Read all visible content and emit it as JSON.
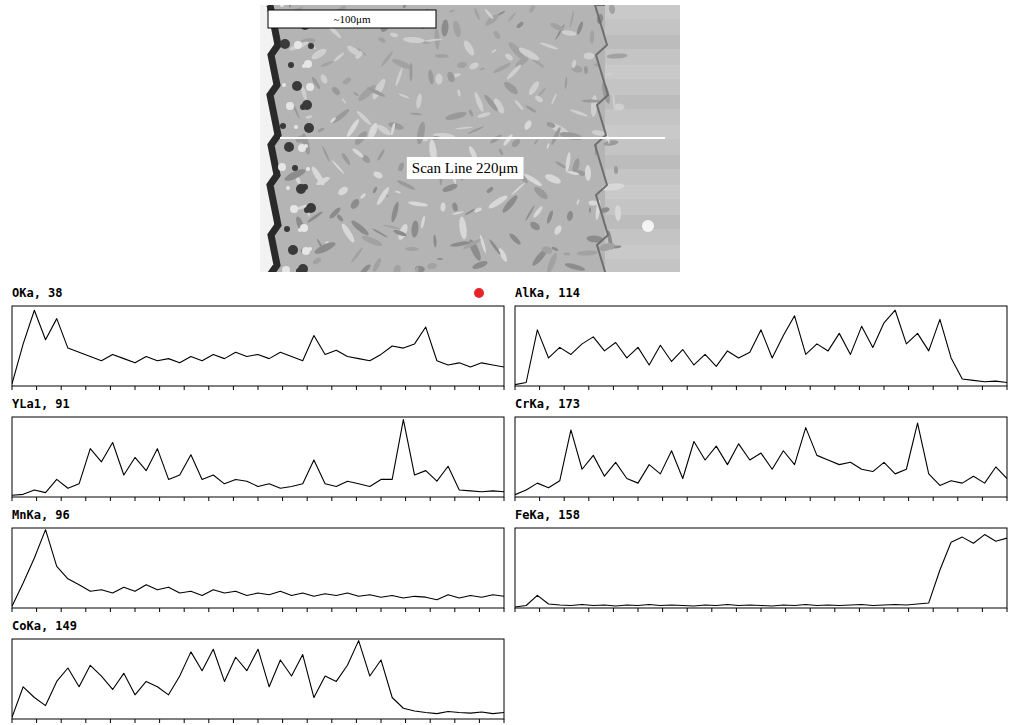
{
  "image": {
    "scale_bar": "~100μm",
    "scan_line_label": "Scan Line 220μm"
  },
  "chart_data": [
    {
      "type": "line",
      "title": "OKa, 38",
      "color": "#000000",
      "grid": false,
      "tick_labels": false,
      "xlim": [
        0,
        220
      ],
      "ylim": [
        0,
        38
      ],
      "xticks": [
        0,
        11,
        22,
        33,
        44,
        55,
        66,
        77,
        88,
        99,
        110,
        121,
        132,
        143,
        154,
        165,
        176,
        187,
        198,
        209,
        220
      ],
      "x": [
        0,
        5,
        10,
        15,
        20,
        25,
        30,
        35,
        40,
        45,
        50,
        55,
        60,
        65,
        70,
        75,
        80,
        85,
        90,
        95,
        100,
        105,
        110,
        115,
        120,
        125,
        130,
        135,
        140,
        145,
        150,
        155,
        160,
        165,
        170,
        175,
        180,
        185,
        190,
        195,
        200,
        205,
        210,
        215,
        220
      ],
      "values": [
        1,
        20,
        36,
        22,
        32,
        18,
        16,
        14,
        12,
        15,
        13,
        11,
        14,
        12,
        13,
        11,
        14,
        12,
        15,
        13,
        16,
        14,
        15,
        13,
        16,
        14,
        12,
        24,
        15,
        17,
        14,
        13,
        12,
        15,
        19,
        18,
        20,
        28,
        12,
        10,
        11,
        9,
        11,
        10,
        9
      ]
    },
    {
      "type": "line",
      "title": "AlKa, 114",
      "color": "#000000",
      "grid": false,
      "tick_labels": false,
      "xlim": [
        0,
        220
      ],
      "ylim": [
        0,
        114
      ],
      "xticks": [
        0,
        11,
        22,
        33,
        44,
        55,
        66,
        77,
        88,
        99,
        110,
        121,
        132,
        143,
        154,
        165,
        176,
        187,
        198,
        209,
        220
      ],
      "x": [
        0,
        5,
        10,
        15,
        20,
        25,
        30,
        35,
        40,
        45,
        50,
        55,
        60,
        65,
        70,
        75,
        80,
        85,
        90,
        95,
        100,
        105,
        110,
        115,
        120,
        125,
        130,
        135,
        140,
        145,
        150,
        155,
        160,
        165,
        170,
        175,
        180,
        185,
        190,
        195,
        200,
        205,
        210,
        215,
        220
      ],
      "values": [
        2,
        5,
        80,
        40,
        55,
        45,
        60,
        70,
        50,
        62,
        40,
        55,
        30,
        58,
        35,
        52,
        30,
        45,
        28,
        50,
        40,
        48,
        80,
        40,
        72,
        100,
        45,
        60,
        50,
        75,
        45,
        85,
        55,
        90,
        108,
        60,
        75,
        50,
        95,
        40,
        10,
        8,
        6,
        7,
        5
      ]
    },
    {
      "type": "line",
      "title": "YLa1, 91",
      "color": "#000000",
      "grid": false,
      "tick_labels": false,
      "xlim": [
        0,
        220
      ],
      "ylim": [
        0,
        91
      ],
      "xticks": [
        0,
        11,
        22,
        33,
        44,
        55,
        66,
        77,
        88,
        99,
        110,
        121,
        132,
        143,
        154,
        165,
        176,
        187,
        198,
        209,
        220
      ],
      "x": [
        0,
        5,
        10,
        15,
        20,
        25,
        30,
        35,
        40,
        45,
        50,
        55,
        60,
        65,
        70,
        75,
        80,
        85,
        90,
        95,
        100,
        105,
        110,
        115,
        120,
        125,
        130,
        135,
        140,
        145,
        150,
        155,
        160,
        165,
        170,
        175,
        180,
        185,
        190,
        195,
        200,
        205,
        210,
        215,
        220
      ],
      "values": [
        2,
        3,
        8,
        5,
        20,
        10,
        15,
        55,
        40,
        62,
        25,
        45,
        30,
        55,
        20,
        25,
        48,
        20,
        25,
        15,
        20,
        18,
        12,
        15,
        10,
        12,
        15,
        42,
        15,
        12,
        18,
        15,
        12,
        20,
        20,
        88,
        25,
        30,
        18,
        35,
        8,
        7,
        6,
        7,
        6
      ]
    },
    {
      "type": "line",
      "title": "CrKa, 173",
      "color": "#000000",
      "grid": false,
      "tick_labels": false,
      "xlim": [
        0,
        220
      ],
      "ylim": [
        0,
        173
      ],
      "xticks": [
        0,
        11,
        22,
        33,
        44,
        55,
        66,
        77,
        88,
        99,
        110,
        121,
        132,
        143,
        154,
        165,
        176,
        187,
        198,
        209,
        220
      ],
      "x": [
        0,
        5,
        10,
        15,
        20,
        25,
        30,
        35,
        40,
        45,
        50,
        55,
        60,
        65,
        70,
        75,
        80,
        85,
        90,
        95,
        100,
        105,
        110,
        115,
        120,
        125,
        130,
        135,
        140,
        145,
        150,
        155,
        160,
        165,
        170,
        175,
        180,
        185,
        190,
        195,
        200,
        205,
        210,
        215,
        220
      ],
      "values": [
        5,
        15,
        30,
        20,
        35,
        145,
        60,
        90,
        45,
        75,
        40,
        30,
        70,
        50,
        100,
        40,
        120,
        80,
        110,
        70,
        115,
        80,
        95,
        60,
        100,
        70,
        150,
        90,
        80,
        70,
        75,
        60,
        55,
        75,
        50,
        60,
        160,
        50,
        25,
        35,
        30,
        45,
        30,
        65,
        40
      ]
    },
    {
      "type": "line",
      "title": "MnKa, 96",
      "color": "#000000",
      "grid": false,
      "tick_labels": false,
      "xlim": [
        0,
        220
      ],
      "ylim": [
        0,
        96
      ],
      "xticks": [
        0,
        11,
        22,
        33,
        44,
        55,
        66,
        77,
        88,
        99,
        110,
        121,
        132,
        143,
        154,
        165,
        176,
        187,
        198,
        209,
        220
      ],
      "x": [
        0,
        5,
        10,
        15,
        20,
        25,
        30,
        35,
        40,
        45,
        50,
        55,
        60,
        65,
        70,
        75,
        80,
        85,
        90,
        95,
        100,
        105,
        110,
        115,
        120,
        125,
        130,
        135,
        140,
        145,
        150,
        155,
        160,
        165,
        170,
        175,
        180,
        185,
        190,
        195,
        200,
        205,
        210,
        215,
        220
      ],
      "values": [
        2,
        30,
        60,
        94,
        50,
        35,
        28,
        20,
        22,
        18,
        25,
        20,
        28,
        22,
        25,
        18,
        20,
        15,
        22,
        18,
        20,
        15,
        18,
        16,
        20,
        15,
        18,
        14,
        17,
        15,
        18,
        14,
        16,
        13,
        15,
        12,
        14,
        13,
        10,
        16,
        12,
        15,
        13,
        16,
        14
      ]
    },
    {
      "type": "line",
      "title": "FeKa, 158",
      "color": "#000000",
      "grid": false,
      "tick_labels": false,
      "xlim": [
        0,
        220
      ],
      "ylim": [
        0,
        158
      ],
      "xticks": [
        0,
        11,
        22,
        33,
        44,
        55,
        66,
        77,
        88,
        99,
        110,
        121,
        132,
        143,
        154,
        165,
        176,
        187,
        198,
        209,
        220
      ],
      "x": [
        0,
        5,
        10,
        15,
        20,
        25,
        30,
        35,
        40,
        45,
        50,
        55,
        60,
        65,
        70,
        75,
        80,
        85,
        90,
        95,
        100,
        105,
        110,
        115,
        120,
        125,
        130,
        135,
        140,
        145,
        150,
        155,
        160,
        165,
        170,
        175,
        180,
        185,
        190,
        195,
        200,
        205,
        210,
        215,
        220
      ],
      "values": [
        2,
        5,
        25,
        8,
        6,
        5,
        7,
        5,
        6,
        4,
        6,
        5,
        7,
        5,
        6,
        5,
        4,
        6,
        5,
        7,
        5,
        6,
        5,
        4,
        6,
        5,
        7,
        5,
        6,
        5,
        6,
        7,
        5,
        6,
        7,
        6,
        8,
        10,
        75,
        130,
        140,
        128,
        145,
        132,
        138
      ]
    },
    {
      "type": "line",
      "title": "CoKa, 149",
      "color": "#000000",
      "grid": false,
      "tick_labels": false,
      "xlim": [
        0,
        220
      ],
      "ylim": [
        0,
        149
      ],
      "xticks": [
        0,
        11,
        22,
        33,
        44,
        55,
        66,
        77,
        88,
        99,
        110,
        121,
        132,
        143,
        154,
        165,
        176,
        187,
        198,
        209,
        220
      ],
      "x": [
        0,
        5,
        10,
        15,
        20,
        25,
        30,
        35,
        40,
        45,
        50,
        55,
        60,
        65,
        70,
        75,
        80,
        85,
        90,
        95,
        100,
        105,
        110,
        115,
        120,
        125,
        130,
        135,
        140,
        145,
        150,
        155,
        160,
        165,
        170,
        175,
        180,
        185,
        190,
        195,
        200,
        205,
        210,
        215,
        220
      ],
      "values": [
        3,
        60,
        40,
        25,
        70,
        95,
        60,
        100,
        80,
        55,
        85,
        45,
        70,
        60,
        45,
        80,
        125,
        90,
        130,
        70,
        115,
        90,
        130,
        60,
        110,
        80,
        120,
        40,
        80,
        70,
        100,
        146,
        80,
        110,
        40,
        20,
        15,
        12,
        10,
        14,
        12,
        11,
        13,
        10,
        12
      ]
    }
  ]
}
